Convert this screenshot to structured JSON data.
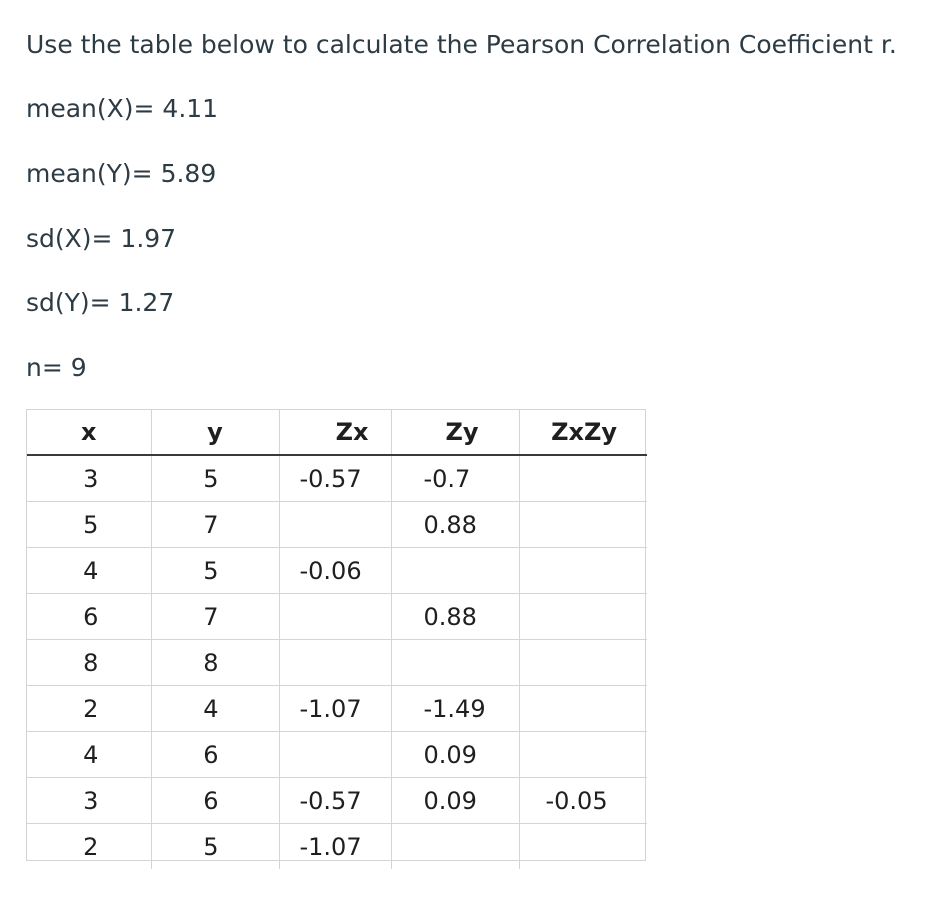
{
  "prompt": "Use the table below to calculate the Pearson Correlation Coefficient r.",
  "stats": {
    "mean_x": "mean(X)= 4.11",
    "mean_y": "mean(Y)= 5.89",
    "sd_x": "sd(X)= 1.97",
    "sd_y": "sd(Y)= 1.27",
    "n": "n= 9"
  },
  "table": {
    "headers": [
      "x",
      "y",
      "Zx",
      "Zy",
      "ZxZy"
    ],
    "rows": [
      [
        "3",
        "5",
        "-0.57",
        "-0.7",
        ""
      ],
      [
        "5",
        "7",
        "",
        "0.88",
        ""
      ],
      [
        "4",
        "5",
        "-0.06",
        "",
        ""
      ],
      [
        "6",
        "7",
        "",
        "0.88",
        ""
      ],
      [
        "8",
        "8",
        "",
        "",
        ""
      ],
      [
        "2",
        "4",
        "-1.07",
        "-1.49",
        ""
      ],
      [
        "4",
        "6",
        "",
        "0.09",
        ""
      ],
      [
        "3",
        "6",
        "-0.57",
        "0.09",
        "-0.05"
      ],
      [
        "2",
        "5",
        "-1.07",
        "",
        ""
      ]
    ]
  }
}
